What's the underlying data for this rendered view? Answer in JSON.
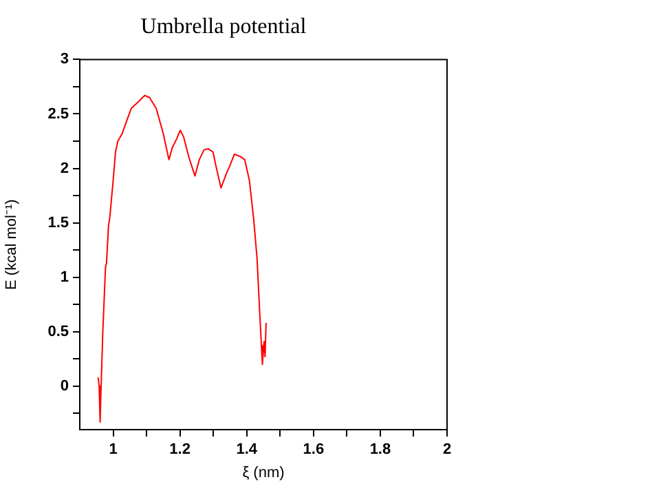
{
  "chart_data": {
    "type": "line",
    "title": "Umbrella potential",
    "xlabel": "ξ (nm)",
    "ylabel": "E (kcal mol⁻¹)",
    "xlim": [
      0.9,
      2
    ],
    "ylim": [
      -0.4,
      3
    ],
    "xticks": [
      1,
      {
        "value": 1.1,
        "label": null
      },
      1.2,
      {
        "value": 1.3,
        "label": null
      },
      1.4,
      {
        "value": 1.5,
        "label": null
      },
      1.6,
      {
        "value": 1.7,
        "label": null
      },
      1.8,
      {
        "value": 1.9,
        "label": null
      },
      2
    ],
    "yticks": [
      {
        "value": -0.25,
        "label": null
      },
      0,
      {
        "value": 0.25,
        "label": null
      },
      0.5,
      {
        "value": 0.75,
        "label": null
      },
      1,
      {
        "value": 1.25,
        "label": null
      },
      1.5,
      {
        "value": 1.75,
        "label": null
      },
      2,
      {
        "value": 2.25,
        "label": null
      },
      2.5,
      {
        "value": 2.75,
        "label": null
      },
      3
    ],
    "grid": false,
    "legend": false,
    "marker": "none",
    "line_style": "solid",
    "series": [
      {
        "color": "#ff0000",
        "x": [
          0.955,
          0.958,
          0.961,
          0.963,
          0.969,
          0.977,
          0.98,
          0.986,
          0.99,
          1.0,
          1.007,
          1.014,
          1.027,
          1.041,
          1.054,
          1.075,
          1.095,
          1.109,
          1.129,
          1.15,
          1.167,
          1.177,
          1.19,
          1.201,
          1.211,
          1.227,
          1.245,
          1.258,
          1.272,
          1.285,
          1.299,
          1.308,
          1.323,
          1.34,
          1.349,
          1.363,
          1.38,
          1.394,
          1.408,
          1.421,
          1.431,
          1.439,
          1.444,
          1.447,
          1.452,
          1.455,
          1.458
        ],
        "values": [
          0.08,
          0.0,
          -0.33,
          -0.09,
          0.5,
          1.09,
          1.13,
          1.47,
          1.55,
          1.89,
          2.15,
          2.25,
          2.32,
          2.44,
          2.55,
          2.61,
          2.67,
          2.65,
          2.55,
          2.32,
          2.08,
          2.19,
          2.27,
          2.35,
          2.29,
          2.1,
          1.93,
          2.08,
          2.17,
          2.18,
          2.15,
          2.02,
          1.82,
          1.96,
          2.02,
          2.13,
          2.11,
          2.08,
          1.89,
          1.53,
          1.17,
          0.67,
          0.37,
          0.2,
          0.41,
          0.27,
          0.58
        ]
      }
    ]
  }
}
